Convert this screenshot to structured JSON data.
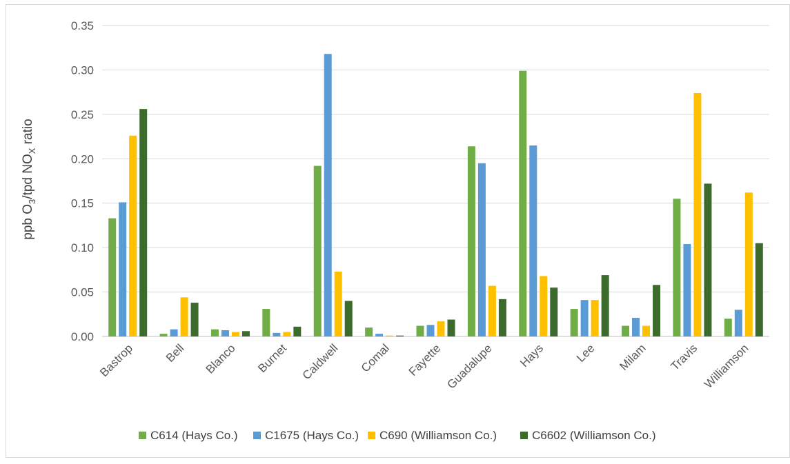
{
  "chart_data": {
    "type": "bar",
    "categories": [
      "Bastrop",
      "Bell",
      "Blanco",
      "Burnet",
      "Caldwell",
      "Comal",
      "Fayette",
      "Guadalupe",
      "Hays",
      "Lee",
      "Milam",
      "Travis",
      "Williamson"
    ],
    "series": [
      {
        "name": "C614 (Hays Co.)",
        "color": "#70ad47",
        "values": [
          0.133,
          0.003,
          0.008,
          0.031,
          0.192,
          0.01,
          0.012,
          0.214,
          0.299,
          0.031,
          0.012,
          0.155,
          0.02
        ]
      },
      {
        "name": "C1675 (Hays Co.)",
        "color": "#5b9bd5",
        "values": [
          0.151,
          0.008,
          0.007,
          0.004,
          0.318,
          0.003,
          0.013,
          0.195,
          0.215,
          0.041,
          0.021,
          0.104,
          0.03
        ]
      },
      {
        "name": "C690 (Williamson Co.)",
        "color": "#ffc000",
        "values": [
          0.226,
          0.044,
          0.005,
          0.005,
          0.073,
          0.001,
          0.017,
          0.057,
          0.068,
          0.041,
          0.012,
          0.274,
          0.162
        ]
      },
      {
        "name": "C6602 (Williamson Co.)",
        "color": "#3d6b2e",
        "values": [
          0.256,
          0.038,
          0.006,
          0.011,
          0.04,
          0.001,
          0.019,
          0.042,
          0.055,
          0.069,
          0.058,
          0.172,
          0.105
        ]
      }
    ],
    "ylabel_prefix": "ppb O",
    "ylabel_sub1": "3",
    "ylabel_mid": "/tpd NO",
    "ylabel_sub2": "X",
    "ylabel_suffix": " ratio",
    "ylim": [
      0,
      0.35
    ],
    "yticks": [
      "0.00",
      "0.05",
      "0.10",
      "0.15",
      "0.20",
      "0.25",
      "0.30",
      "0.35"
    ],
    "grid": true,
    "legend_position": "bottom"
  }
}
